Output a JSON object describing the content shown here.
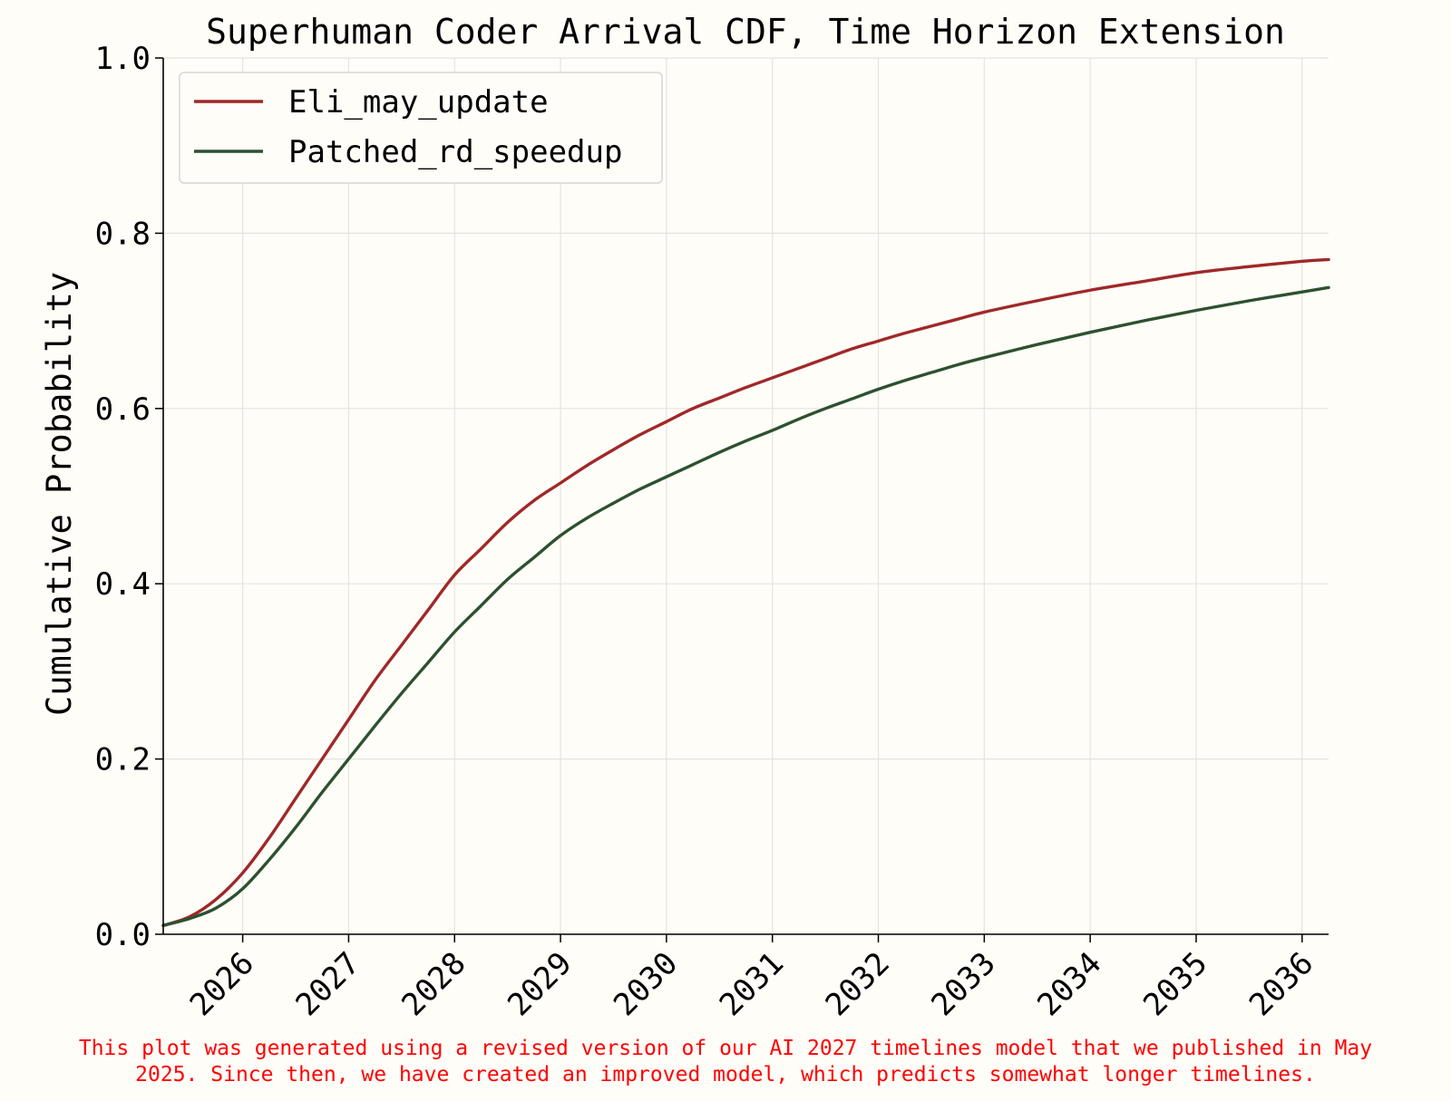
{
  "chart_data": {
    "type": "line",
    "title": "Superhuman Coder Arrival CDF, Time Horizon Extension",
    "xlabel": "",
    "ylabel": "Cumulative Probability",
    "xlim": [
      2025.25,
      2036.25
    ],
    "ylim": [
      0,
      1.0
    ],
    "x_ticks": [
      "2026",
      "2027",
      "2028",
      "2029",
      "2030",
      "2031",
      "2032",
      "2033",
      "2034",
      "2035",
      "2036"
    ],
    "y_ticks": [
      "0.0",
      "0.2",
      "0.4",
      "0.6",
      "0.8",
      "1.0"
    ],
    "grid": true,
    "legend_position": "upper-left",
    "series": [
      {
        "name": "Eli_may_update",
        "color": "#a02828",
        "x": [
          2025.25,
          2025.5,
          2025.75,
          2026.0,
          2026.25,
          2026.5,
          2026.75,
          2027.0,
          2027.25,
          2027.5,
          2027.75,
          2028.0,
          2028.25,
          2028.5,
          2028.75,
          2029.0,
          2029.25,
          2029.5,
          2029.75,
          2030.0,
          2030.25,
          2030.5,
          2030.75,
          2031.0,
          2031.25,
          2031.5,
          2031.75,
          2032.0,
          2032.25,
          2032.5,
          2032.75,
          2033.0,
          2033.5,
          2034.0,
          2034.5,
          2035.0,
          2035.5,
          2036.0,
          2036.25
        ],
        "values": [
          0.01,
          0.02,
          0.04,
          0.07,
          0.11,
          0.155,
          0.2,
          0.245,
          0.29,
          0.33,
          0.37,
          0.41,
          0.44,
          0.47,
          0.495,
          0.515,
          0.535,
          0.553,
          0.57,
          0.585,
          0.6,
          0.612,
          0.624,
          0.635,
          0.646,
          0.657,
          0.668,
          0.677,
          0.686,
          0.694,
          0.702,
          0.71,
          0.723,
          0.735,
          0.745,
          0.755,
          0.762,
          0.768,
          0.77
        ]
      },
      {
        "name": "Patched_rd_speedup",
        "color": "#2d5130",
        "x": [
          2025.25,
          2025.5,
          2025.75,
          2026.0,
          2026.25,
          2026.5,
          2026.75,
          2027.0,
          2027.25,
          2027.5,
          2027.75,
          2028.0,
          2028.25,
          2028.5,
          2028.75,
          2029.0,
          2029.25,
          2029.5,
          2029.75,
          2030.0,
          2030.25,
          2030.5,
          2030.75,
          2031.0,
          2031.25,
          2031.5,
          2031.75,
          2032.0,
          2032.25,
          2032.5,
          2032.75,
          2033.0,
          2033.5,
          2034.0,
          2034.5,
          2035.0,
          2035.5,
          2036.0,
          2036.25
        ],
        "values": [
          0.01,
          0.018,
          0.03,
          0.052,
          0.085,
          0.122,
          0.162,
          0.2,
          0.238,
          0.275,
          0.31,
          0.345,
          0.375,
          0.405,
          0.43,
          0.455,
          0.475,
          0.492,
          0.508,
          0.522,
          0.536,
          0.55,
          0.563,
          0.575,
          0.588,
          0.6,
          0.611,
          0.622,
          0.632,
          0.641,
          0.65,
          0.658,
          0.673,
          0.687,
          0.7,
          0.712,
          0.723,
          0.733,
          0.738
        ]
      }
    ]
  },
  "footnote": {
    "line1": "This plot was generated using a revised version of our AI 2027 timelines model that we published in May",
    "line2": "2025. Since then, we have created an improved model, which predicts somewhat longer timelines."
  }
}
